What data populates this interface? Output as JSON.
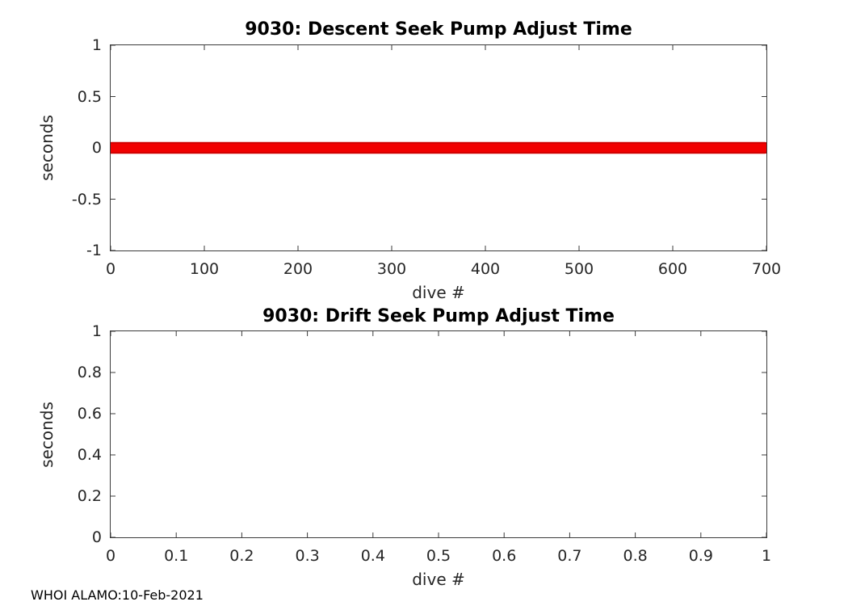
{
  "figure": {
    "footer": "WHOI ALAMO:10-Feb-2021"
  },
  "chart_data": [
    {
      "type": "line",
      "title": "9030: Descent Seek Pump Adjust Time",
      "xlabel": "dive #",
      "ylabel": "seconds",
      "xlim": [
        0,
        700
      ],
      "ylim": [
        -1,
        1
      ],
      "xticks": [
        0,
        100,
        200,
        300,
        400,
        500,
        600,
        700
      ],
      "yticks": [
        -1,
        -0.5,
        0,
        0.5,
        1
      ],
      "grid": false,
      "legend": false,
      "series": [
        {
          "marker": "o",
          "color": "#f10000",
          "edge_color": "#cf0000",
          "marker_size": 13,
          "y_constant": 0,
          "x_start": 1,
          "x_end": 698
        }
      ]
    },
    {
      "type": "line",
      "title": "9030: Drift Seek Pump Adjust Time",
      "xlabel": "dive #",
      "ylabel": "seconds",
      "xlim": [
        0,
        1
      ],
      "ylim": [
        0,
        1
      ],
      "xticks": [
        0,
        0.1,
        0.2,
        0.3,
        0.4,
        0.5,
        0.6,
        0.7,
        0.8,
        0.9,
        1
      ],
      "yticks": [
        0,
        0.2,
        0.4,
        0.6,
        0.8,
        1
      ],
      "grid": false,
      "legend": false,
      "series": []
    }
  ]
}
